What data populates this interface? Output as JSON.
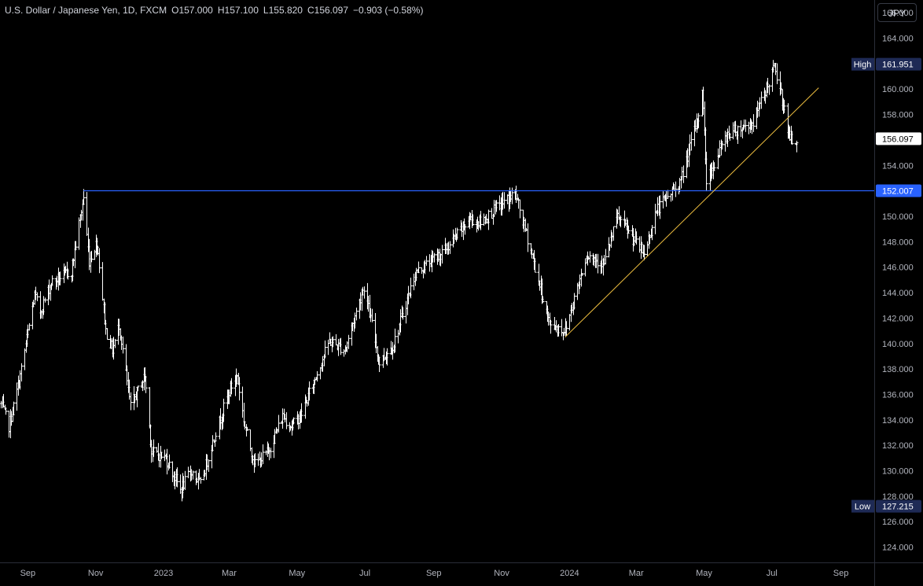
{
  "header": {
    "symbol": "U.S. Dollar / Japanese Yen, 1D, FXCM",
    "open_label": "O",
    "open": "157.000",
    "high_label": "H",
    "high": "157.100",
    "low_label": "L",
    "low": "155.820",
    "close_label": "C",
    "close": "156.097",
    "change": "−0.903 (−0.58%)"
  },
  "currency_button": "JPY",
  "colors": {
    "background": "#000000",
    "bars": "#ffffff",
    "resistance": "#2962ff",
    "trendline": "#f0c040",
    "label_box": "#1e2a55",
    "axis_text": "#b2b5be"
  },
  "chart_data": {
    "type": "ohlc",
    "x_ticks": [
      "Sep",
      "Nov",
      "2023",
      "Mar",
      "May",
      "Jul",
      "Sep",
      "Nov",
      "2024",
      "Mar",
      "May",
      "Jul",
      "Sep"
    ],
    "x_tick_dates": [
      "2022-09-01",
      "2022-11-01",
      "2023-01-01",
      "2023-03-01",
      "2023-05-01",
      "2023-07-01",
      "2023-09-01",
      "2023-11-01",
      "2024-01-01",
      "2024-03-01",
      "2024-05-01",
      "2024-07-01",
      "2024-09-01"
    ],
    "x_range": [
      "2022-08-07",
      "2024-10-01"
    ],
    "y_ticks": [
      "124.000",
      "126.000",
      "128.000",
      "130.000",
      "132.000",
      "134.000",
      "136.000",
      "138.000",
      "140.000",
      "142.000",
      "144.000",
      "146.000",
      "148.000",
      "150.000",
      "152.000",
      "154.000",
      "156.000",
      "158.000",
      "160.000",
      "162.000",
      "164.000",
      "166.000"
    ],
    "ylim": [
      122.8,
      167.0
    ],
    "price_path": [
      [
        "2022-08-08",
        135.2
      ],
      [
        "2022-08-15",
        133.5
      ],
      [
        "2022-08-24",
        137.0
      ],
      [
        "2022-09-07",
        143.8
      ],
      [
        "2022-09-12",
        142.5
      ],
      [
        "2022-09-22",
        144.8
      ],
      [
        "2022-10-10",
        145.7
      ],
      [
        "2022-10-21",
        151.5
      ],
      [
        "2022-10-26",
        146.5
      ],
      [
        "2022-11-02",
        148.0
      ],
      [
        "2022-11-10",
        141.0
      ],
      [
        "2022-11-16",
        139.5
      ],
      [
        "2022-11-22",
        141.5
      ],
      [
        "2022-12-02",
        135.0
      ],
      [
        "2022-12-15",
        137.5
      ],
      [
        "2022-12-21",
        131.5
      ],
      [
        "2023-01-03",
        131.0
      ],
      [
        "2023-01-16",
        128.5
      ],
      [
        "2023-01-26",
        130.0
      ],
      [
        "2023-02-03",
        128.9
      ],
      [
        "2023-02-13",
        132.0
      ],
      [
        "2023-03-02",
        136.5
      ],
      [
        "2023-03-08",
        137.5
      ],
      [
        "2023-03-15",
        133.5
      ],
      [
        "2023-03-24",
        130.5
      ],
      [
        "2023-04-05",
        131.5
      ],
      [
        "2023-04-18",
        134.3
      ],
      [
        "2023-04-26",
        133.5
      ],
      [
        "2023-05-05",
        134.5
      ],
      [
        "2023-05-30",
        140.2
      ],
      [
        "2023-06-13",
        139.5
      ],
      [
        "2023-06-30",
        144.5
      ],
      [
        "2023-07-14",
        138.5
      ],
      [
        "2023-07-27",
        140.0
      ],
      [
        "2023-08-15",
        145.5
      ],
      [
        "2023-09-13",
        147.5
      ],
      [
        "2023-10-03",
        149.8
      ],
      [
        "2023-10-13",
        149.5
      ],
      [
        "2023-11-01",
        151.0
      ],
      [
        "2023-11-13",
        151.8
      ],
      [
        "2023-11-28",
        147.0
      ],
      [
        "2023-12-14",
        141.5
      ],
      [
        "2023-12-28",
        141.0
      ],
      [
        "2024-01-16",
        147.0
      ],
      [
        "2024-02-01",
        146.3
      ],
      [
        "2024-02-13",
        150.0
      ],
      [
        "2024-03-08",
        147.0
      ],
      [
        "2024-03-19",
        150.5
      ],
      [
        "2024-04-10",
        152.8
      ],
      [
        "2024-04-26",
        158.0
      ],
      [
        "2024-04-29",
        160.2
      ],
      [
        "2024-05-03",
        152.8
      ],
      [
        "2024-05-22",
        156.5
      ],
      [
        "2024-06-14",
        157.4
      ],
      [
        "2024-07-03",
        161.7
      ],
      [
        "2024-07-11",
        158.8
      ],
      [
        "2024-07-17",
        156.0
      ],
      [
        "2024-07-23",
        156.1
      ]
    ],
    "levels": {
      "high": {
        "label": "High",
        "value": "161.951"
      },
      "last": {
        "value": "156.097"
      },
      "resistance": {
        "value": "152.007",
        "start_date": "2022-10-21"
      },
      "low": {
        "label": "Low",
        "value": "127.215"
      }
    },
    "trendline": {
      "start": [
        "2023-12-28",
        140.5
      ],
      "end": [
        "2024-08-12",
        160.1
      ]
    }
  }
}
